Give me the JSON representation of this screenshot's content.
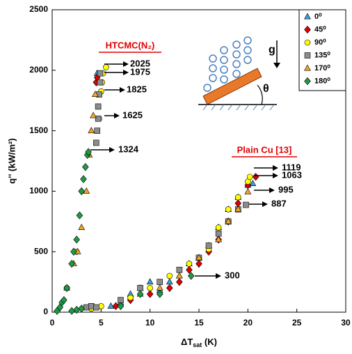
{
  "chart_data": {
    "type": "scatter",
    "xlabel": "ΔT",
    "xlabel_sub": "sat",
    "xlabel_end": " (K)",
    "ylabel": "q'' (kW/m²)",
    "xlim": [
      0,
      30
    ],
    "xticks": [
      0,
      5,
      10,
      15,
      20,
      25,
      30
    ],
    "ylim": [
      0,
      2500
    ],
    "yticks": [
      0,
      500,
      1000,
      1500,
      2000,
      2500
    ],
    "grid": false,
    "legend": "upper right",
    "series": [
      {
        "name": "0⁰",
        "color": "#3a9fd8",
        "marker": "triangle",
        "x": [
          4.6,
          6,
          7,
          8,
          9,
          10,
          11,
          12,
          13,
          14,
          15,
          16,
          17,
          18,
          19,
          20,
          20.5
        ],
        "y": [
          1975,
          50,
          80,
          150,
          200,
          250,
          180,
          250,
          300,
          400,
          450,
          550,
          700,
          850,
          950,
          1050,
          1063
        ]
      },
      {
        "name": "45⁰",
        "color": "#e00000",
        "marker": "diamond",
        "x": [
          4.5,
          4.6,
          6.5,
          8,
          10,
          12,
          13,
          14,
          15,
          16,
          17,
          18,
          19,
          20,
          20.8
        ],
        "y": [
          1900,
          1940,
          50,
          100,
          150,
          200,
          250,
          350,
          400,
          500,
          600,
          750,
          900,
          1050,
          1119
        ]
      },
      {
        "name": "90⁰",
        "color": "#ffff00",
        "marker": "circle",
        "x": [
          1.5,
          2.5,
          4,
          5,
          4.8,
          5,
          5.1,
          5.2,
          5.5,
          8,
          10,
          12,
          14,
          16,
          17,
          18,
          19,
          20,
          20.2
        ],
        "y": [
          200,
          500,
          30,
          50,
          1600,
          1825,
          1900,
          1975,
          2025,
          120,
          200,
          300,
          400,
          520,
          700,
          850,
          950,
          1080,
          1119
        ]
      },
      {
        "name": "135⁰",
        "color": "#8c8c8c",
        "marker": "square",
        "x": [
          3.5,
          4,
          4.5,
          4.5,
          4.6,
          4.7,
          4.7,
          4.8,
          4.9,
          4.9,
          7,
          9,
          11,
          13,
          15,
          16,
          17,
          18,
          19,
          19.8
        ],
        "y": [
          40,
          50,
          40,
          1400,
          1500,
          1600,
          1700,
          1800,
          1900,
          1975,
          100,
          200,
          250,
          350,
          450,
          550,
          650,
          750,
          850,
          887
        ]
      },
      {
        "name": "170⁰",
        "color": "#f5a623",
        "marker": "triangle",
        "x": [
          1.5,
          2.2,
          2.6,
          3,
          3.5,
          3.8,
          4,
          4.2,
          4.4,
          9,
          11,
          13,
          15,
          17,
          18,
          19,
          20
        ],
        "y": [
          200,
          400,
          500,
          700,
          1000,
          1300,
          1500,
          1625,
          1800,
          150,
          200,
          300,
          450,
          600,
          750,
          850,
          995
        ]
      },
      {
        "name": "180⁰",
        "color": "#1e9a45",
        "marker": "diamond",
        "x": [
          0.5,
          0.8,
          1,
          1.2,
          1.5,
          2,
          2.2,
          2.5,
          2.8,
          3,
          3.2,
          3.4,
          3.6,
          3.7,
          2,
          2.5,
          3,
          7,
          9,
          11,
          14.2
        ],
        "y": [
          10,
          40,
          80,
          100,
          200,
          400,
          500,
          600,
          800,
          1000,
          1100,
          1200,
          1300,
          1324,
          10,
          20,
          30,
          50,
          150,
          150,
          300
        ]
      }
    ],
    "annotations": [
      "2025",
      "1975",
      "1825",
      "1625",
      "1324",
      "1119",
      "1063",
      "995",
      "887",
      "300"
    ],
    "labels": [
      "HTCMC(N₂)",
      "Plain Cu [13]"
    ],
    "inset": {
      "gravity": "g",
      "angle": "θ"
    }
  }
}
